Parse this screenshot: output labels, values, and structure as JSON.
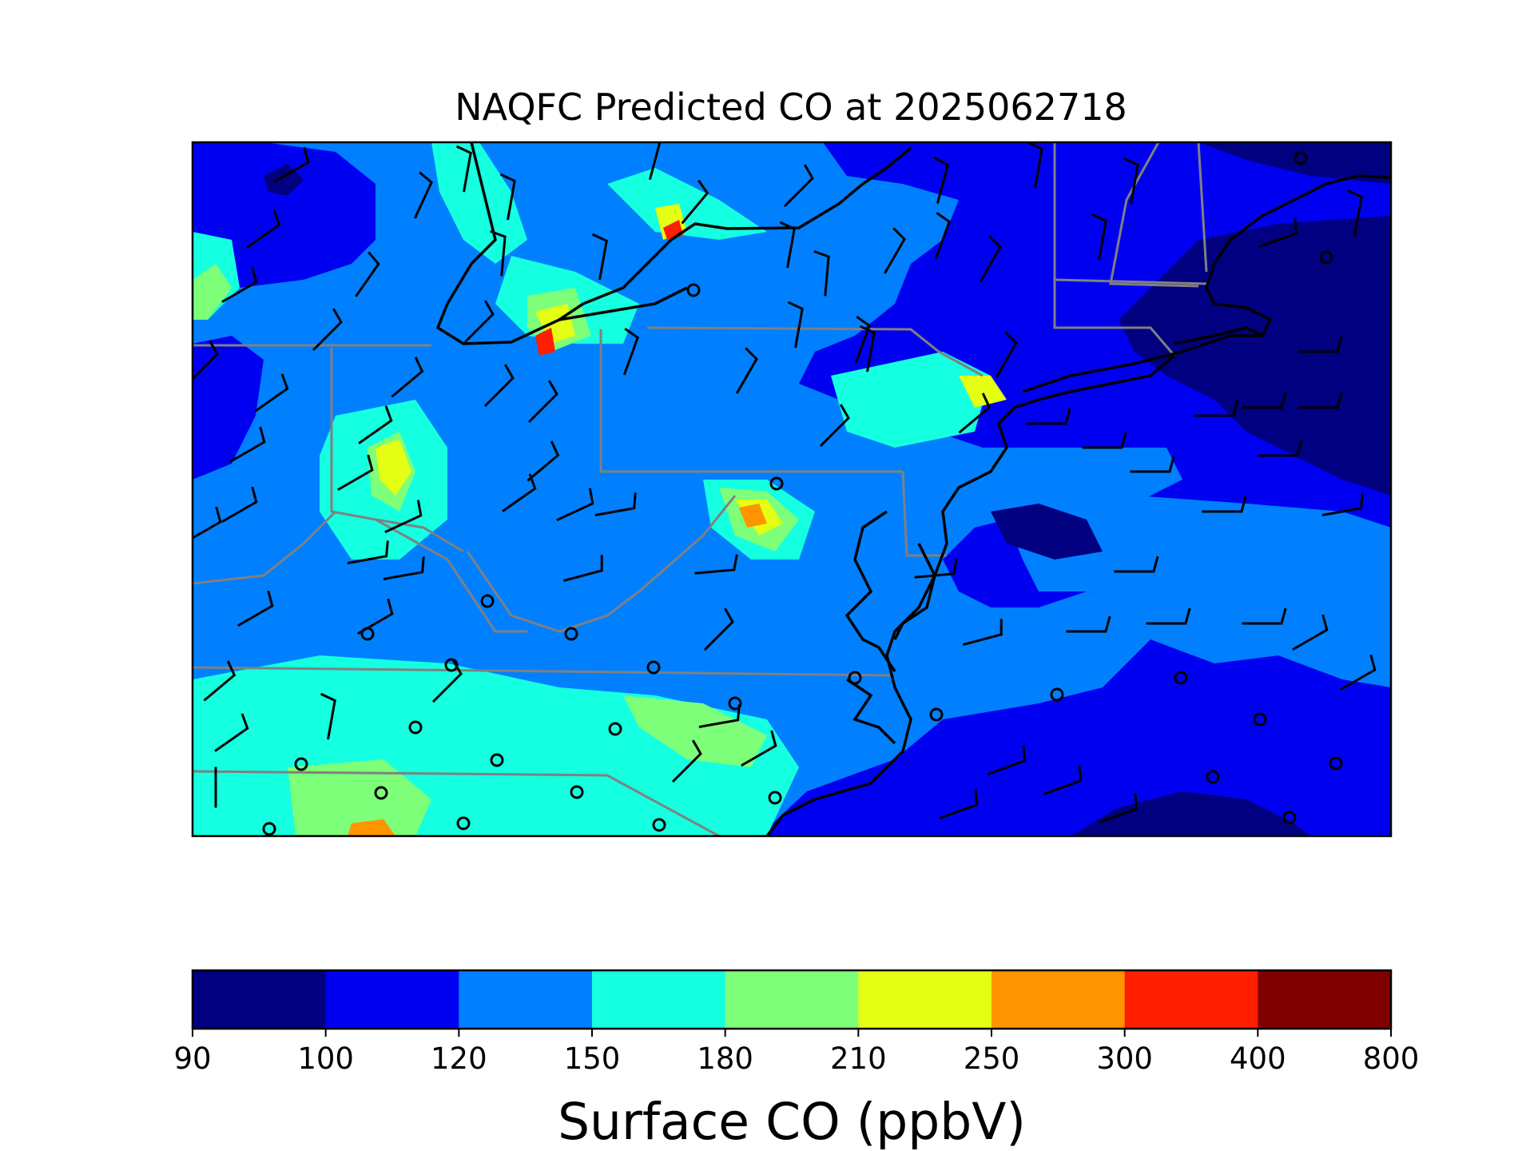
{
  "chart_data": {
    "type": "heatmap",
    "title": "NAQFC Predicted CO at 2025062718",
    "colorbar": {
      "label": "Surface CO (ppbV)",
      "boundaries": [
        "90",
        "100",
        "120",
        "150",
        "180",
        "210",
        "250",
        "300",
        "400",
        "800"
      ],
      "colors": [
        "#000080",
        "#0000f1",
        "#0080ff",
        "#15ffe1",
        "#7dff7a",
        "#e4ff13",
        "#ff9400",
        "#ff1e00",
        "#800000"
      ]
    }
  },
  "colors": {
    "coastline": "#000000",
    "state_borders": "#808080",
    "wind_barbs": "#000000"
  }
}
